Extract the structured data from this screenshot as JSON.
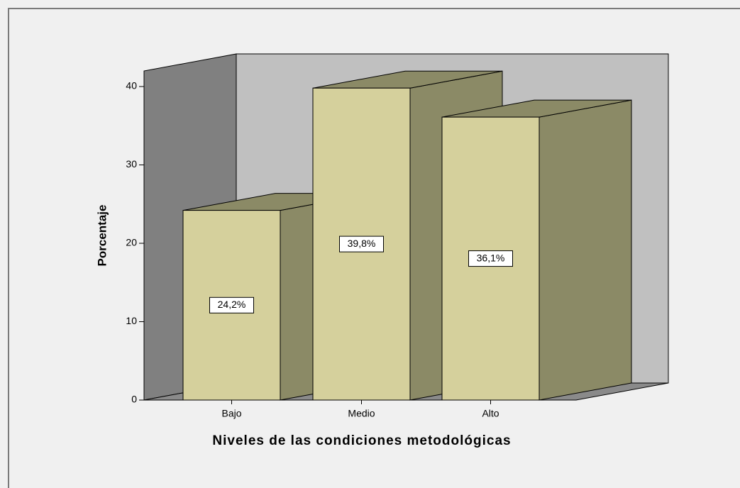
{
  "chart_data": {
    "type": "bar3d",
    "x_label": "Niveles de las condiciones metodológicas",
    "y_label": "Porcentaje",
    "categories": [
      "Bajo",
      "Medio",
      "Alto"
    ],
    "values": [
      24.2,
      39.8,
      36.1
    ],
    "value_labels": [
      "24,2%",
      "39,8%",
      "36,1%"
    ],
    "color": "#d5d09c",
    "ylim": [
      0,
      40
    ],
    "yticks": [
      0,
      10,
      20,
      30,
      40
    ]
  }
}
